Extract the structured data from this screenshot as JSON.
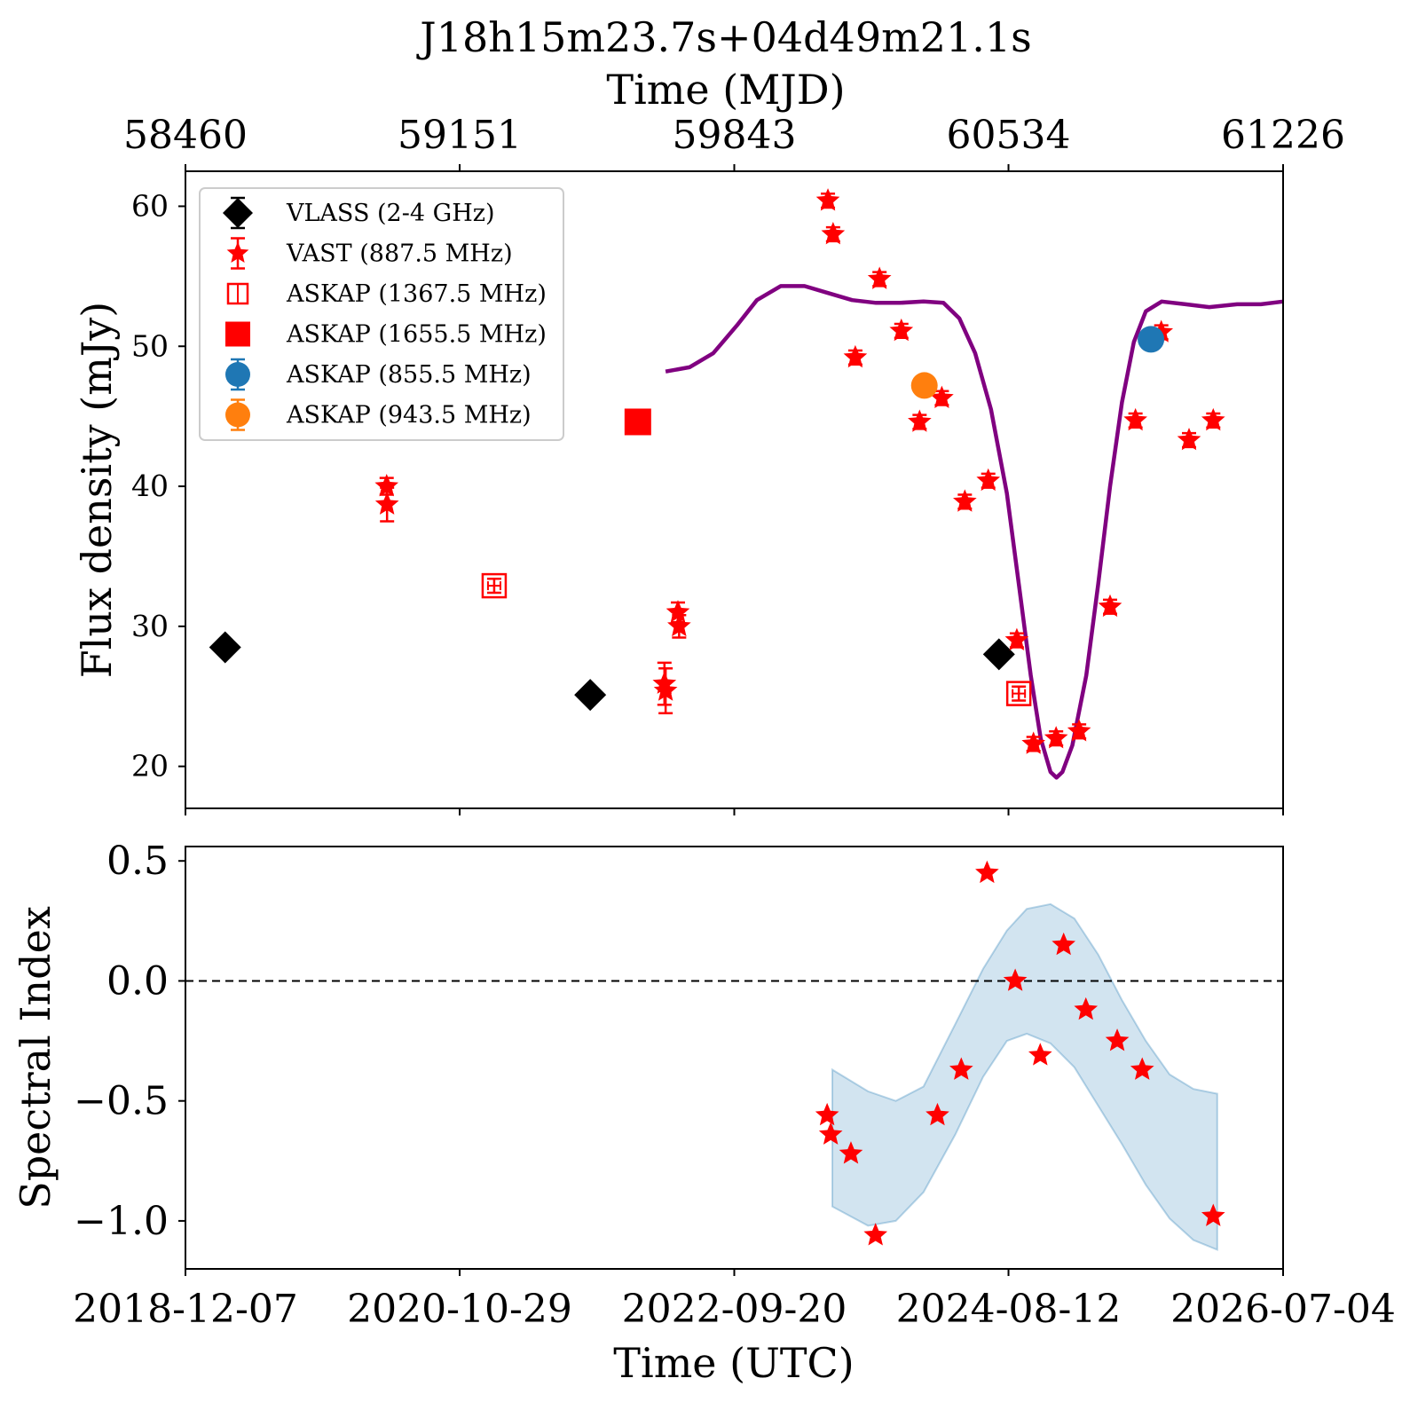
{
  "chart_data": [
    {
      "type": "scatter",
      "panel": "top",
      "title": "J18h15m23.7s+04d49m21.1s",
      "xlabel_top": "Time (MJD)",
      "ylabel": "Flux density (mJy)",
      "xlim_mjd": [
        58460,
        61226
      ],
      "ylim": [
        17,
        62.5
      ],
      "xticks_mjd": [
        58460,
        59151,
        59843,
        60534,
        61226
      ],
      "xticks_top_labels": [
        "58460",
        "59151",
        "59843",
        "60534",
        "61226"
      ],
      "yticks": [
        20,
        30,
        40,
        50,
        60
      ],
      "ytick_labels": [
        "20",
        "30",
        "40",
        "50",
        "60"
      ],
      "legend_position": "upper-left",
      "series": [
        {
          "name": "VLASS (2-4 GHz)",
          "marker": "diamond",
          "color": "#000000",
          "points": [
            [
              58560,
              28.5
            ],
            [
              59480,
              25.1
            ],
            [
              60510,
              28.0
            ]
          ],
          "err": [
            0.3,
            0.3,
            0.3
          ]
        },
        {
          "name": "VAST (887.5 MHz)",
          "marker": "star",
          "color": "#ff0000",
          "points": [
            [
              58967,
              40.0
            ],
            [
              58968,
              38.7
            ],
            [
              59667,
              25.9
            ],
            [
              59670,
              25.4
            ],
            [
              59701,
              31.0
            ],
            [
              59704,
              30.0
            ],
            [
              60079,
              60.4
            ],
            [
              60092,
              58.0
            ],
            [
              60148,
              49.2
            ],
            [
              60209,
              54.8
            ],
            [
              60264,
              51.1
            ],
            [
              60310,
              44.6
            ],
            [
              60366,
              46.3
            ],
            [
              60424,
              38.9
            ],
            [
              60483,
              40.4
            ],
            [
              60555,
              29.0
            ],
            [
              60597,
              21.6
            ],
            [
              60654,
              22.0
            ],
            [
              60712,
              22.5
            ],
            [
              60790,
              31.4
            ],
            [
              60854,
              44.7
            ],
            [
              60919,
              51.0
            ],
            [
              60989,
              43.3
            ],
            [
              61050,
              44.7
            ]
          ],
          "err": [
            0.6,
            1.2,
            1.5,
            1.6,
            0.7,
            0.8,
            0.5,
            0.5,
            0.5,
            0.5,
            0.5,
            0.5,
            0.5,
            0.5,
            0.5,
            0.5,
            0.5,
            0.5,
            0.5,
            0.5,
            0.5,
            0.5,
            0.5,
            0.5
          ]
        },
        {
          "name": "ASKAP (1367.5 MHz)",
          "marker": "square-open",
          "color": "#ff0000",
          "points": [
            [
              59238,
              32.9
            ],
            [
              60560,
              25.2
            ]
          ],
          "err": [
            0.5,
            0.5
          ]
        },
        {
          "name": "ASKAP (1655.5 MHz)",
          "marker": "square",
          "color": "#ff0000",
          "points": [
            [
              59600,
              44.6
            ]
          ],
          "err": [
            0.3
          ]
        },
        {
          "name": "ASKAP (855.5 MHz)",
          "marker": "circle",
          "color": "#1f77b4",
          "points": [
            [
              60893,
              50.5
            ]
          ],
          "err": [
            0.3
          ]
        },
        {
          "name": "ASKAP (943.5 MHz)",
          "marker": "circle",
          "color": "#ff7f0e",
          "points": [
            [
              60322,
              47.2
            ]
          ],
          "err": [
            0.3
          ]
        }
      ],
      "model_curve": {
        "color": "#800080",
        "points": [
          [
            59670,
            48.2
          ],
          [
            59730,
            48.5
          ],
          [
            59790,
            49.5
          ],
          [
            59850,
            51.5
          ],
          [
            59900,
            53.3
          ],
          [
            59960,
            54.3
          ],
          [
            60020,
            54.3
          ],
          [
            60080,
            53.8
          ],
          [
            60140,
            53.3
          ],
          [
            60200,
            53.1
          ],
          [
            60260,
            53.1
          ],
          [
            60320,
            53.2
          ],
          [
            60370,
            53.1
          ],
          [
            60410,
            52.0
          ],
          [
            60450,
            49.5
          ],
          [
            60490,
            45.5
          ],
          [
            60530,
            39.5
          ],
          [
            60560,
            33.0
          ],
          [
            60590,
            26.5
          ],
          [
            60615,
            22.0
          ],
          [
            60640,
            19.6
          ],
          [
            60655,
            19.2
          ],
          [
            60670,
            19.6
          ],
          [
            60695,
            21.5
          ],
          [
            60730,
            26.5
          ],
          [
            60760,
            33.0
          ],
          [
            60790,
            40.0
          ],
          [
            60820,
            46.0
          ],
          [
            60850,
            50.3
          ],
          [
            60880,
            52.5
          ],
          [
            60920,
            53.2
          ],
          [
            60980,
            53.0
          ],
          [
            61040,
            52.8
          ],
          [
            61110,
            53.0
          ],
          [
            61170,
            53.0
          ],
          [
            61226,
            53.2
          ]
        ]
      }
    },
    {
      "type": "scatter",
      "panel": "bottom",
      "xlabel": "Time (UTC)",
      "ylabel": "Spectral Index",
      "xlim_mjd": [
        58460,
        61226
      ],
      "ylim": [
        -1.2,
        0.56
      ],
      "xticks_mjd": [
        58460,
        59151,
        59843,
        60534,
        61226
      ],
      "xtick_labels": [
        "2018-12-07",
        "2020-10-29",
        "2022-09-20",
        "2024-08-12",
        "2026-07-04"
      ],
      "yticks": [
        0.5,
        0.0,
        -0.5,
        -1.0
      ],
      "ytick_labels": [
        "0.5",
        "0.0",
        "−0.5",
        "−1.0"
      ],
      "reference_line": {
        "y": 0.0,
        "style": "dashed",
        "color": "#000000"
      },
      "series": [
        {
          "name": "",
          "marker": "star",
          "color": "#ff0000",
          "points": [
            [
              60077,
              -0.56
            ],
            [
              60086,
              -0.64
            ],
            [
              60137,
              -0.72
            ],
            [
              60199,
              -1.06
            ],
            [
              60355,
              -0.56
            ],
            [
              60415,
              -0.37
            ],
            [
              60480,
              0.45
            ],
            [
              60551,
              0.0
            ],
            [
              60614,
              -0.31
            ],
            [
              60673,
              0.15
            ],
            [
              60729,
              -0.12
            ],
            [
              60808,
              -0.25
            ],
            [
              60871,
              -0.37
            ],
            [
              61050,
              -0.98
            ]
          ]
        }
      ],
      "band": {
        "color": "#1f77b4",
        "opacity": 0.2,
        "x": [
          60090,
          60180,
          60250,
          60320,
          60400,
          60470,
          60530,
          60580,
          60640,
          60700,
          60760,
          60820,
          60880,
          60940,
          61000,
          61060
        ],
        "lower": [
          -0.94,
          -1.02,
          -1.0,
          -0.88,
          -0.64,
          -0.4,
          -0.25,
          -0.22,
          -0.26,
          -0.36,
          -0.52,
          -0.68,
          -0.85,
          -0.99,
          -1.08,
          -1.12
        ],
        "upper": [
          -0.37,
          -0.46,
          -0.5,
          -0.44,
          -0.18,
          0.05,
          0.21,
          0.3,
          0.32,
          0.26,
          0.11,
          -0.08,
          -0.25,
          -0.39,
          -0.45,
          -0.47
        ]
      }
    }
  ]
}
